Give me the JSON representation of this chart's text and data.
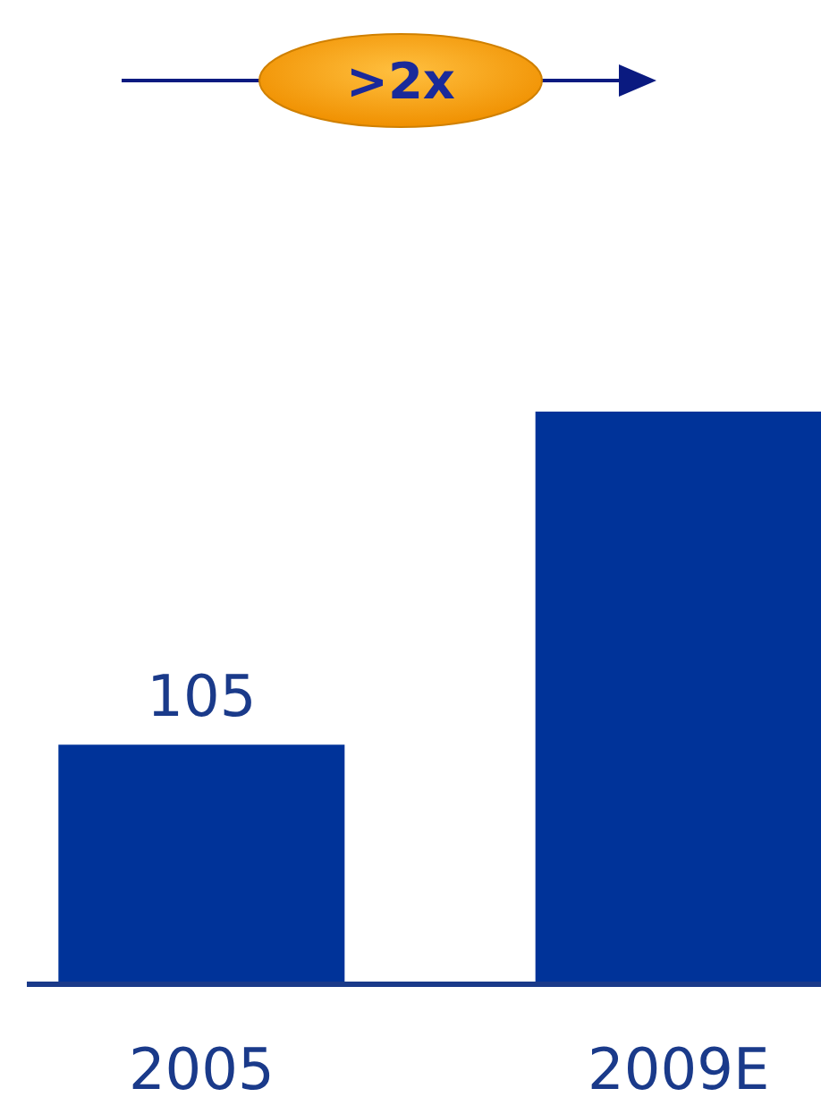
{
  "chart_data": {
    "type": "bar",
    "categories": [
      "2005",
      "2009E"
    ],
    "values": [
      105,
      251
    ],
    "value_labels": [
      "105",
      null
    ],
    "color": "#003399",
    "annotations": [
      ">2x"
    ]
  }
}
